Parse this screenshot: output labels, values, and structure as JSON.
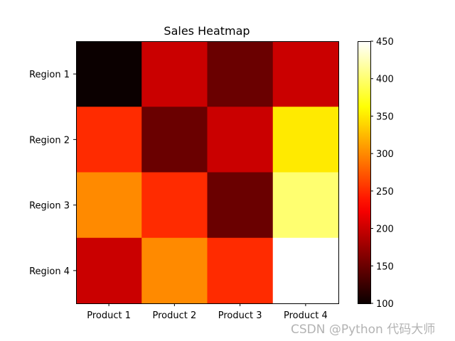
{
  "chart_data": {
    "type": "heatmap",
    "title": "Sales Heatmap",
    "x_categories": [
      "Product 1",
      "Product 2",
      "Product 3",
      "Product 4"
    ],
    "y_categories": [
      "Region 1",
      "Region 2",
      "Region 3",
      "Region 4"
    ],
    "values": [
      [
        100,
        200,
        150,
        200
      ],
      [
        250,
        150,
        200,
        350
      ],
      [
        300,
        250,
        150,
        400
      ],
      [
        200,
        300,
        250,
        450
      ]
    ],
    "colormap": "hot",
    "vmin": 100,
    "vmax": 450,
    "colorbar_ticks": [
      100,
      150,
      200,
      250,
      300,
      350,
      400,
      450
    ],
    "colorbar_tick_labels": [
      "100",
      "150",
      "200",
      "250",
      "300",
      "350",
      "400",
      "450"
    ],
    "colorbar_placement": "right",
    "grid": false
  },
  "watermark": "CSDN @Python 代码大师"
}
